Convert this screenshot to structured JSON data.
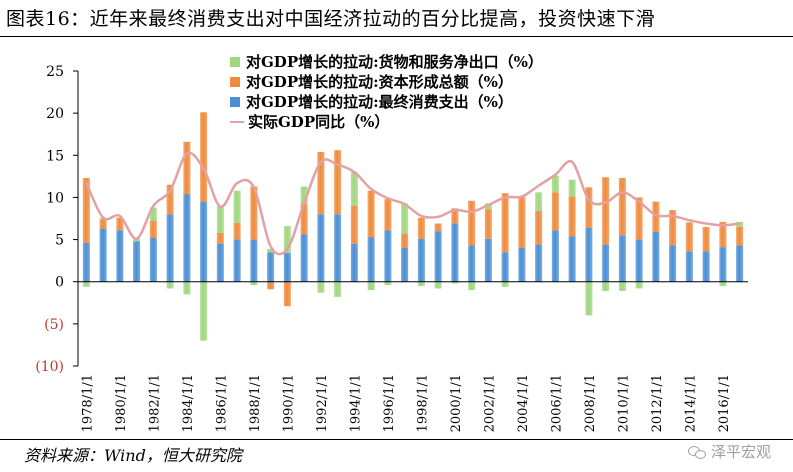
{
  "header": {
    "title": "图表16：近年来最终消费支出对中国经济拉动的百分比提高，投资快速下滑"
  },
  "footer": {
    "source": "资料来源：Wind，恒大研究院",
    "watermark": "泽平宏观"
  },
  "colors": {
    "net_exports": "#9fd67f",
    "capital_formation": "#f08a3c",
    "consumption": "#4a8fd4",
    "gdp_line": "#e3a1a3"
  },
  "chart_data": {
    "type": "bar",
    "stacked": true,
    "grid": false,
    "legend_position": "top-center",
    "ylim": [
      -10,
      25
    ],
    "yticks": [
      "25",
      "20",
      "15",
      "10",
      "5",
      "0",
      "(5)",
      "(10)"
    ],
    "xtick_labels": [
      "1978/1/1",
      "1980/1/1",
      "1982/1/1",
      "1984/1/1",
      "1986/1/1",
      "1988/1/1",
      "1990/1/1",
      "1992/1/1",
      "1994/1/1",
      "1996/1/1",
      "1998/1/1",
      "2000/1/1",
      "2002/1/1",
      "2004/1/1",
      "2006/1/1",
      "2008/1/1",
      "2010/1/1",
      "2012/1/1",
      "2014/1/1",
      "2016/1/1"
    ],
    "categories": [
      "1978",
      "1979",
      "1980",
      "1981",
      "1982",
      "1983",
      "1984",
      "1985",
      "1986",
      "1987",
      "1988",
      "1989",
      "1990",
      "1991",
      "1992",
      "1993",
      "1994",
      "1995",
      "1996",
      "1997",
      "1998",
      "1999",
      "2000",
      "2001",
      "2002",
      "2003",
      "2004",
      "2005",
      "2006",
      "2007",
      "2008",
      "2009",
      "2010",
      "2011",
      "2012",
      "2013",
      "2014",
      "2015",
      "2016",
      "2017"
    ],
    "series": [
      {
        "name": "对GDP增长的拉动:货物和服务净出口（%）",
        "kind": "bar",
        "values": [
          -0.6,
          0.2,
          0.0,
          0.4,
          1.6,
          -0.8,
          -1.5,
          -7.0,
          3.2,
          3.8,
          -0.4,
          0.4,
          3.2,
          2.0,
          -1.3,
          -1.8,
          4.0,
          -1.0,
          -0.4,
          3.6,
          -0.5,
          -0.8,
          -0.2,
          -1.0,
          0.7,
          -0.6,
          0.2,
          2.2,
          2.0,
          2.0,
          -4.0,
          -1.1,
          -1.1,
          -0.8,
          0.0,
          0.0,
          0.1,
          0.0,
          -0.5,
          0.6
        ]
      },
      {
        "name": "对GDP增长的拉动:资本形成总额（%）",
        "kind": "bar",
        "values": [
          7.7,
          1.1,
          1.5,
          0.0,
          2.0,
          3.5,
          6.2,
          10.6,
          1.3,
          2.0,
          6.3,
          -0.9,
          -2.9,
          3.7,
          7.4,
          7.6,
          4.5,
          5.5,
          3.7,
          1.7,
          2.5,
          0.9,
          1.8,
          5.3,
          3.5,
          7.0,
          6.0,
          4.0,
          4.5,
          4.7,
          4.8,
          8.0,
          6.8,
          5.0,
          3.6,
          4.2,
          3.4,
          2.9,
          3.0,
          2.2
        ]
      },
      {
        "name": "对GDP增长的拉动:最终消费支出（%）",
        "kind": "bar",
        "values": [
          4.6,
          6.3,
          6.1,
          4.8,
          5.2,
          8.0,
          10.4,
          9.5,
          4.5,
          5.0,
          5.0,
          3.5,
          3.4,
          5.6,
          8.0,
          8.0,
          4.5,
          5.3,
          6.1,
          4.0,
          5.1,
          6.0,
          6.9,
          4.3,
          5.1,
          3.5,
          4.0,
          4.4,
          6.1,
          5.4,
          6.4,
          4.4,
          5.5,
          5.0,
          5.9,
          4.3,
          3.6,
          3.6,
          4.1,
          4.3
        ]
      },
      {
        "name": "实际GDP同比（%）",
        "kind": "line",
        "values": [
          11.7,
          7.6,
          7.8,
          5.1,
          9.0,
          10.8,
          15.2,
          13.4,
          8.9,
          11.7,
          11.2,
          4.2,
          3.9,
          9.3,
          14.2,
          13.9,
          13.0,
          11.0,
          9.9,
          9.2,
          7.8,
          7.7,
          8.5,
          8.3,
          9.1,
          10.0,
          10.1,
          11.4,
          12.7,
          14.2,
          9.7,
          9.4,
          10.6,
          9.5,
          7.9,
          7.8,
          7.3,
          6.9,
          6.7,
          6.9
        ]
      }
    ]
  }
}
